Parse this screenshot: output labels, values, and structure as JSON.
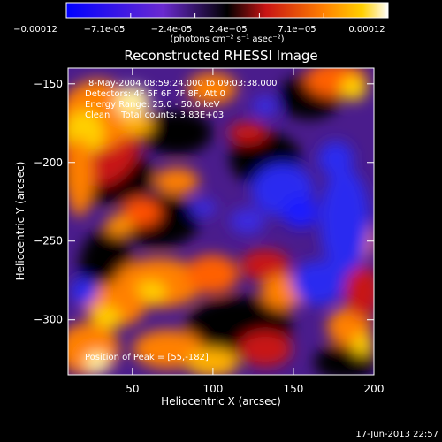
{
  "chart_data": {
    "type": "heatmap",
    "title": "Reconstructed RHESSI Image",
    "xlabel": "Heliocentric X (arcsec)",
    "ylabel": "Heliocentric Y (arcsec)",
    "xlim": [
      10,
      200
    ],
    "ylim": [
      -335,
      -140
    ],
    "x_ticks": [
      50,
      100,
      150,
      200
    ],
    "y_ticks": [
      -150,
      -200,
      -250,
      -300
    ],
    "colorbar": {
      "min": -0.00012,
      "max": 0.00012,
      "tick_labels": [
        "-0.00012",
        "-7.1e-05",
        "-2.4e-05",
        "2.4e-05",
        "7.1e-05",
        "0.00012"
      ],
      "unit_label": "(photons cm⁻² s⁻¹ asec⁻²)",
      "colors": [
        "#0000ff",
        "#6a2ad0",
        "#000000",
        "#c81414",
        "#ff8000",
        "#ffffff"
      ]
    },
    "annotations": [
      "8-May-2004 08:59:24.000 to 09:03:38.000",
      "Detectors: 4F 5F 6F 7F 8F, Att 0",
      "Energy Range: 25.0 - 50.0 keV",
      "Clean    Total counts: 3.83E+03"
    ],
    "peak_label": "Position of Peak = [55,-182]",
    "peak": [
      55,
      -182
    ]
  },
  "footer": {
    "timestamp": "17-Jun-2013 22:57"
  }
}
